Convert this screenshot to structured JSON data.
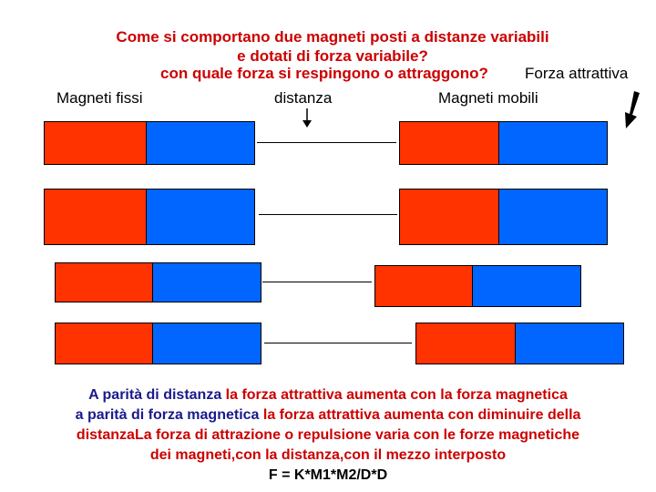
{
  "title": {
    "line1": "Come si comportano due magneti posti a distanze variabili",
    "line2": "e dotati di forza variabile?",
    "line3": "con quale forza si respingono o attraggono?"
  },
  "labels": {
    "forza": "Forza attrattiva",
    "fissi": "Magneti fissi",
    "distanza": "distanza",
    "mobili": "Magneti mobili"
  },
  "bottom": {
    "l1a": "A parità di distanza ",
    "l1b": "la forza attrattiva aumenta con la forza magnetica",
    "l2a": "a parità di forza magnetica ",
    "l2b": "la forza attrattiva aumenta con diminuire della",
    "l3a": "distanza",
    "l3b": "La forza di attrazione o repulsione varia con le forze magnetiche",
    "l4": "dei magneti,con la distanza,con il mezzo interposto",
    "formula": "F = K*M1*M2/D*D"
  },
  "colors": {
    "red": "#ff3300",
    "blue": "#0066ff",
    "title": "#cc0000",
    "text_blue": "#1a1a8c"
  }
}
